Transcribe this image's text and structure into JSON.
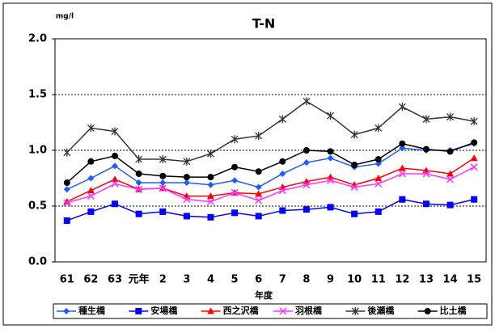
{
  "chart_data": {
    "type": "line",
    "title": "T-N",
    "y_label": "mg/l",
    "x_label": "年度",
    "categories": [
      "61",
      "62",
      "63",
      "元年",
      "2",
      "3",
      "4",
      "5",
      "6",
      "7",
      "8",
      "9",
      "10",
      "11",
      "12",
      "13",
      "14",
      "15"
    ],
    "ylim": [
      0,
      2
    ],
    "yticks": [
      {
        "value": 0,
        "label": "0.0"
      },
      {
        "value": 0.5,
        "label": "0.5"
      },
      {
        "value": 1,
        "label": "1.0"
      },
      {
        "value": 1.5,
        "label": "1.5"
      },
      {
        "value": 2,
        "label": "2.0"
      }
    ],
    "grid": true,
    "legend": "bottom",
    "series": [
      {
        "name": "種生橋",
        "color": "#1f5cff",
        "marker": "diamond",
        "values": [
          0.65,
          0.75,
          0.86,
          0.71,
          0.71,
          0.71,
          0.69,
          0.73,
          0.67,
          0.79,
          0.89,
          0.93,
          0.85,
          0.88,
          1.02,
          1.0,
          1.0,
          1.06
        ]
      },
      {
        "name": "安場橋",
        "color": "#0000ff",
        "marker": "square",
        "values": [
          0.37,
          0.45,
          0.52,
          0.43,
          0.45,
          0.41,
          0.4,
          0.44,
          0.41,
          0.46,
          0.47,
          0.49,
          0.43,
          0.45,
          0.56,
          0.52,
          0.51,
          0.56
        ]
      },
      {
        "name": "西之沢橋",
        "color": "#ff0000",
        "marker": "triangle",
        "values": [
          0.54,
          0.64,
          0.74,
          0.65,
          0.66,
          0.59,
          0.59,
          0.62,
          0.61,
          0.67,
          0.72,
          0.76,
          0.69,
          0.75,
          0.84,
          0.82,
          0.79,
          0.93
        ]
      },
      {
        "name": "羽根橋",
        "color": "#ff33ff",
        "marker": "x",
        "values": [
          0.53,
          0.59,
          0.7,
          0.65,
          0.66,
          0.56,
          0.54,
          0.62,
          0.55,
          0.64,
          0.69,
          0.73,
          0.67,
          0.7,
          0.79,
          0.79,
          0.74,
          0.85
        ]
      },
      {
        "name": "後瀬橋",
        "color": "#333333",
        "marker": "star",
        "values": [
          0.98,
          1.2,
          1.17,
          0.92,
          0.92,
          0.9,
          0.97,
          1.1,
          1.13,
          1.28,
          1.44,
          1.31,
          1.14,
          1.2,
          1.39,
          1.28,
          1.3,
          1.26
        ]
      },
      {
        "name": "比土橋",
        "color": "#000000",
        "marker": "circle",
        "values": [
          0.71,
          0.9,
          0.95,
          0.79,
          0.77,
          0.76,
          0.76,
          0.85,
          0.81,
          0.9,
          1.0,
          0.99,
          0.87,
          0.92,
          1.06,
          1.01,
          0.99,
          1.07
        ]
      }
    ]
  }
}
